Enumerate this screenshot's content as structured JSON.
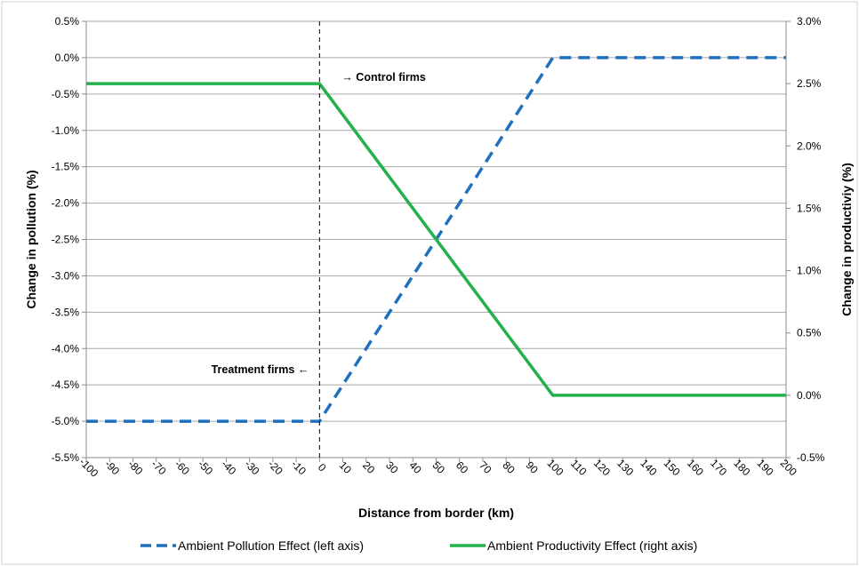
{
  "chart_data": {
    "type": "line",
    "title": "",
    "xlabel": "Distance from border (km)",
    "ylabel_left": "Change in pollution (%)",
    "ylabel_right": "Change in productiviy (%)",
    "xlim": [
      -100,
      200
    ],
    "ylim_left": [
      -5.5,
      0.5
    ],
    "ylim_right": [
      -0.5,
      3.0
    ],
    "x_ticks": [
      -100,
      -90,
      -80,
      -70,
      -60,
      -50,
      -40,
      -30,
      -20,
      -10,
      0,
      10,
      20,
      30,
      40,
      50,
      60,
      70,
      80,
      90,
      100,
      110,
      120,
      130,
      140,
      150,
      160,
      170,
      180,
      190,
      200
    ],
    "y_left_ticks": [
      "0.5%",
      "0.0%",
      "-0.5%",
      "-1.0%",
      "-1.5%",
      "-2.0%",
      "-2.5%",
      "-3.0%",
      "-3.5%",
      "-4.0%",
      "-4.5%",
      "-5.0%",
      "-5.5%"
    ],
    "y_left_tick_values": [
      0.5,
      0.0,
      -0.5,
      -1.0,
      -1.5,
      -2.0,
      -2.5,
      -3.0,
      -3.5,
      -4.0,
      -4.5,
      -5.0,
      -5.5
    ],
    "y_right_ticks": [
      "3.0%",
      "2.5%",
      "2.0%",
      "1.5%",
      "1.0%",
      "0.5%",
      "0.0%",
      "-0.5%"
    ],
    "y_right_tick_values": [
      3.0,
      2.5,
      2.0,
      1.5,
      1.0,
      0.5,
      0.0,
      -0.5
    ],
    "grid": true,
    "legend_position": "bottom",
    "vertical_line_x": 0,
    "annotations": {
      "control": "→ Control firms",
      "treatment": "Treatment firms ←"
    },
    "series": [
      {
        "name": "Ambient Pollution Effect (left axis)",
        "axis": "left",
        "style": "dashed",
        "color": "#1f6fbf",
        "x": [
          -100,
          0,
          100,
          200
        ],
        "y": [
          -5.0,
          -5.0,
          0.0,
          0.0
        ]
      },
      {
        "name": "Ambient Productivity Effect (right axis)",
        "axis": "right",
        "style": "solid",
        "color": "#22b14c",
        "x": [
          -100,
          0,
          100,
          200
        ],
        "y": [
          2.5,
          2.5,
          0.0,
          0.0
        ]
      }
    ]
  }
}
